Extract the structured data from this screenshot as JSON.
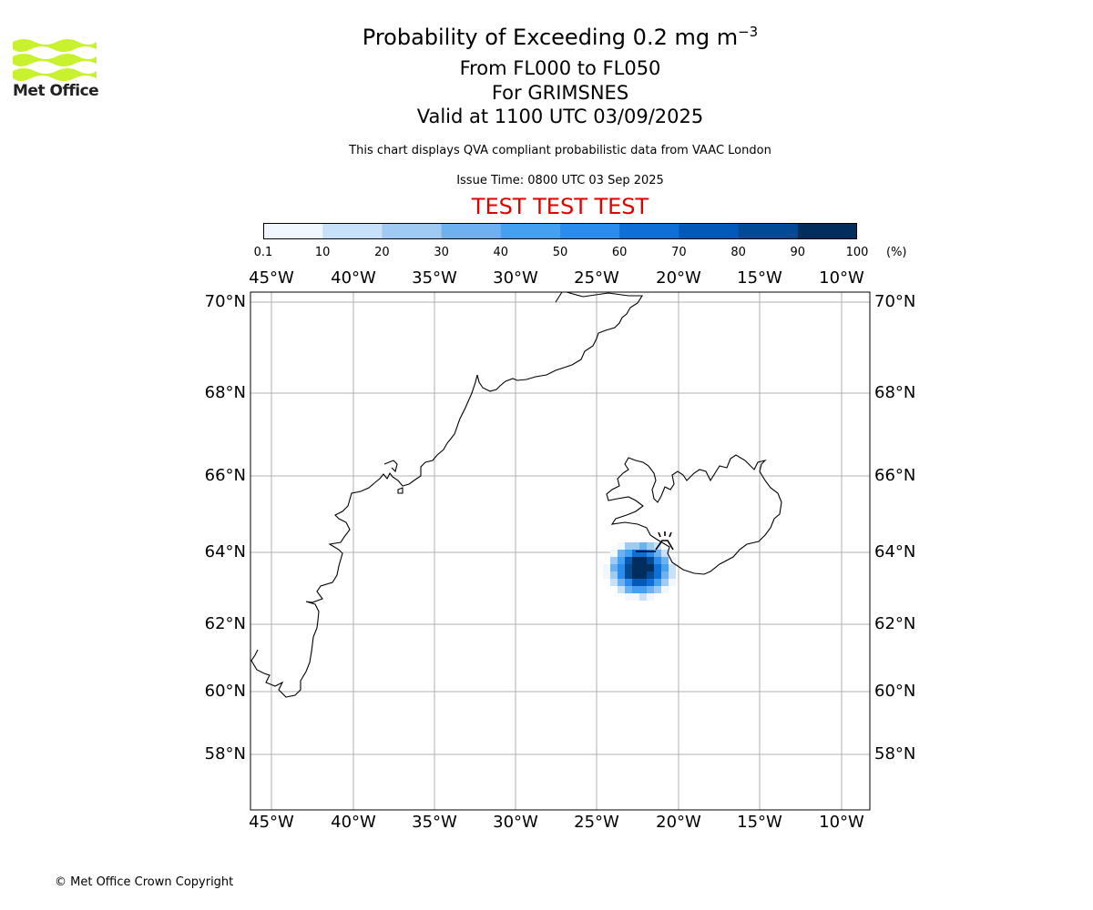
{
  "logo": {
    "text": "Met Office",
    "color": "#c8f22e"
  },
  "header": {
    "title_prefix": "Probability of Exceeding 0.2 mg m",
    "title_superscript": "−3",
    "flight_levels": "From FL000 to FL050",
    "volcano": "For GRIMSNES",
    "valid_time": "Valid at 1100 UTC 03/09/2025",
    "disclaimer": "This chart displays QVA compliant probabilistic data from VAAC London",
    "issue_time": "Issue Time: 0800 UTC 03 Sep 2025",
    "test_banner": "TEST TEST TEST",
    "test_banner_color": "#e00000"
  },
  "colorbar": {
    "labels": [
      "0.1",
      "10",
      "20",
      "30",
      "40",
      "50",
      "60",
      "70",
      "80",
      "90",
      "100"
    ],
    "unit": "(%)",
    "colors": [
      "#f0f7ff",
      "#c8e1fa",
      "#9ecaf4",
      "#6eb1f0",
      "#45a0f0",
      "#2b8cee",
      "#0f6fd6",
      "#0359b8",
      "#024a93",
      "#012e5e"
    ]
  },
  "map": {
    "lon_ticks": [
      "45°W",
      "40°W",
      "35°W",
      "30°W",
      "25°W",
      "20°W",
      "15°W",
      "10°W"
    ],
    "lat_ticks": [
      "70°N",
      "68°N",
      "66°N",
      "64°N",
      "62°N",
      "60°N",
      "58°N"
    ],
    "volcano_icon": "volcano-icon",
    "plume_high_color": "#012e5e"
  },
  "footer": {
    "copyright": "© Met Office Crown Copyright"
  }
}
